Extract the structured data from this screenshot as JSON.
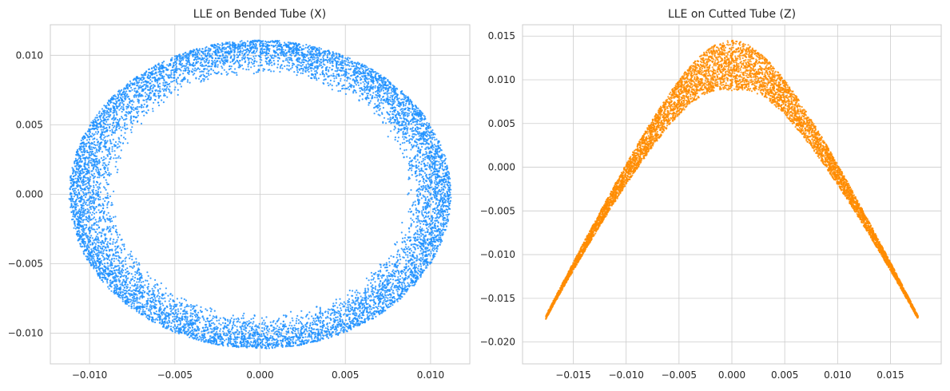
{
  "chart_data": [
    {
      "type": "scatter",
      "title": "LLE on Bended Tube (X)",
      "xlabel": "",
      "ylabel": "",
      "xlim": [
        -0.0123,
        0.0123
      ],
      "ylim": [
        -0.0122,
        0.0122
      ],
      "xticks": [
        -0.01,
        -0.005,
        0.0,
        0.005,
        0.01
      ],
      "xtick_labels": [
        "−0.010",
        "−0.005",
        "0.000",
        "0.005",
        "0.010"
      ],
      "yticks": [
        -0.01,
        -0.005,
        0.0,
        0.005,
        0.01
      ],
      "ytick_labels": [
        "−0.010",
        "−0.005",
        "0.000",
        "0.005",
        "0.010"
      ],
      "grid": true,
      "color": "#1e90ff",
      "shape": "annulus",
      "outer_radius_x": 0.0112,
      "outer_radius_y": 0.0111,
      "inner_radius_x": 0.0085,
      "inner_radius_y": 0.0086,
      "n_points": 9000
    },
    {
      "type": "scatter",
      "title": "LLE on Cutted Tube (Z)",
      "xlabel": "",
      "ylabel": "",
      "xlim": [
        -0.0198,
        0.0198
      ],
      "ylim": [
        -0.0225,
        0.0163
      ],
      "xticks": [
        -0.015,
        -0.01,
        -0.005,
        0.0,
        0.005,
        0.01,
        0.015
      ],
      "xtick_labels": [
        "−0.015",
        "−0.010",
        "−0.005",
        "0.000",
        "0.005",
        "0.010",
        "0.015"
      ],
      "yticks": [
        -0.02,
        -0.015,
        -0.01,
        -0.005,
        0.0,
        0.005,
        0.01,
        0.015
      ],
      "ytick_labels": [
        "−0.020",
        "−0.015",
        "−0.010",
        "−0.005",
        "0.000",
        "0.005",
        "0.010",
        "0.015"
      ],
      "grid": true,
      "color": "#ff8c00",
      "shape": "arch",
      "x_range": [
        -0.0176,
        0.0176
      ],
      "apex": [
        0.0,
        0.0145
      ],
      "apex_inner": 0.0091,
      "end_y": -0.0205,
      "n_points": 7000
    }
  ]
}
